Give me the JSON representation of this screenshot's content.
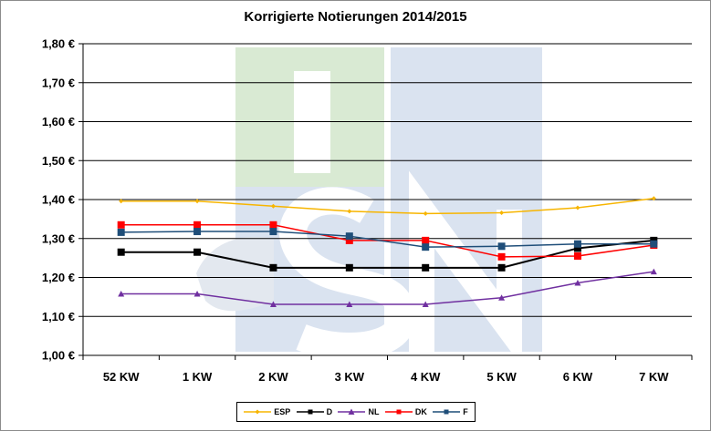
{
  "chart_data": {
    "type": "line",
    "title": "Korrigierte Notierungen 2014/2015",
    "xlabel": "",
    "ylabel": "",
    "categories": [
      "52 KW",
      "1 KW",
      "2 KW",
      "3 KW",
      "4 KW",
      "5 KW",
      "6 KW",
      "7 KW"
    ],
    "ylim": [
      1.0,
      1.8
    ],
    "yticks": [
      "1,00 €",
      "1,10 €",
      "1,20 €",
      "1,30 €",
      "1,40 €",
      "1,50 €",
      "1,60 €",
      "1,70 €",
      "1,80 €"
    ],
    "grid": true,
    "legend_position": "bottom",
    "series": [
      {
        "name": "ESP",
        "color": "#f7b500",
        "marker": "diamond",
        "values": [
          1.396,
          1.396,
          1.383,
          1.37,
          1.364,
          1.366,
          1.379,
          1.403
        ]
      },
      {
        "name": "D",
        "color": "#000000",
        "marker": "square",
        "values": [
          1.265,
          1.265,
          1.225,
          1.225,
          1.225,
          1.225,
          1.275,
          1.295
        ]
      },
      {
        "name": "NL",
        "color": "#7030a0",
        "marker": "triangle",
        "values": [
          1.158,
          1.158,
          1.131,
          1.131,
          1.131,
          1.148,
          1.186,
          1.215
        ]
      },
      {
        "name": "DK",
        "color": "#ff0000",
        "marker": "square",
        "values": [
          1.335,
          1.335,
          1.335,
          1.295,
          1.295,
          1.253,
          1.255,
          1.283
        ]
      },
      {
        "name": "F",
        "color": "#1f4e79",
        "marker": "square",
        "values": [
          1.316,
          1.318,
          1.318,
          1.306,
          1.278,
          1.28,
          1.286,
          1.286
        ]
      }
    ]
  },
  "watermark": {
    "letters": [
      "I",
      "S",
      "N"
    ],
    "colors": {
      "green": "#d9ead3",
      "blue": "#dae3f0",
      "gray": "#e3e8ef"
    }
  }
}
